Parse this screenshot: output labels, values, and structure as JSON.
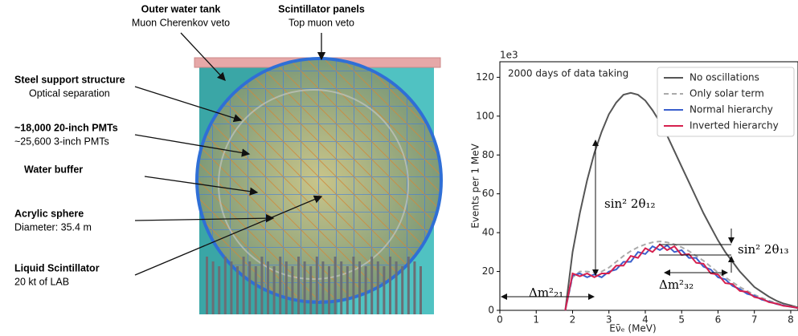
{
  "detector": {
    "labels": [
      {
        "title": "Outer water tank",
        "subtitle": "Muon Cherenkov veto"
      },
      {
        "title": "Scintillator panels",
        "subtitle": "Top muon veto"
      },
      {
        "title": "Steel support structure",
        "subtitle": "Optical separation"
      },
      {
        "title": "~18,000 20-inch PMTs",
        "subtitle": "~25,600 3-inch PMTs"
      },
      {
        "title": "Water buffer"
      },
      {
        "title": "Acrylic sphere",
        "subtitle": "Diameter: 35.4 m"
      },
      {
        "title": "Liquid Scintillator",
        "subtitle": "20 kt of LAB"
      }
    ]
  },
  "chart_data": {
    "type": "line",
    "x_label": "Eν̄ₑ (MeV)",
    "y_label": "Events per 1 MeV",
    "y_offset_label": "1e3",
    "annotations": [
      "2000 days of data taking",
      "sin² 2θ₁₂",
      "sin² 2θ₁₃",
      "Δm²₂₁",
      "Δm²₃₂"
    ],
    "x": [
      1.8,
      2.0,
      2.2,
      2.4,
      2.6,
      2.8,
      3.0,
      3.2,
      3.4,
      3.6,
      3.8,
      4.0,
      4.2,
      4.4,
      4.6,
      4.8,
      5.0,
      5.2,
      5.4,
      5.6,
      5.8,
      6.0,
      6.2,
      6.4,
      6.6,
      6.8,
      7.0,
      7.2,
      7.4,
      7.6,
      7.8,
      8.0,
      8.2
    ],
    "series": [
      {
        "name": "No oscillations",
        "color": "#555555",
        "line_style": "solid",
        "values": [
          0,
          30,
          50,
          67,
          81,
          92,
          101,
          107,
          111,
          112,
          111,
          108,
          103,
          97,
          90,
          82,
          74,
          66,
          58,
          50,
          43,
          36,
          30,
          25,
          20,
          16,
          12,
          9.5,
          7,
          5,
          3.5,
          2.5,
          1.5
        ]
      },
      {
        "name": "Only solar term",
        "color": "#aaaaaa",
        "line_style": "dashed",
        "values": [
          0,
          17,
          20,
          20,
          19.5,
          20,
          22,
          25,
          28,
          30.5,
          32.5,
          34,
          35,
          35.5,
          35,
          34,
          32.5,
          30.5,
          28,
          25.5,
          22.5,
          19.5,
          17,
          14.5,
          12,
          10,
          8,
          6.5,
          5,
          3.8,
          2.8,
          2,
          1.3
        ]
      },
      {
        "name": "Normal hierarchy",
        "color": "#3a5fcd",
        "line_style": "solid",
        "values": [
          0,
          18,
          19,
          17,
          18.5,
          17,
          20,
          21,
          25,
          25,
          30,
          29,
          33,
          31,
          33.5,
          30,
          31,
          27,
          27,
          22.5,
          21,
          17,
          16,
          12.5,
          11,
          8.5,
          7.5,
          5.5,
          4.6,
          3.3,
          2.5,
          1.8,
          1.2
        ]
      },
      {
        "name": "Inverted hierarchy",
        "color": "#d6204e",
        "line_style": "solid",
        "values": [
          0,
          19,
          17.5,
          19,
          17,
          19,
          19,
          23,
          23,
          28,
          27,
          32,
          30,
          34,
          31,
          33,
          28.5,
          29,
          24.5,
          24,
          19,
          18.5,
          14,
          13.5,
          10,
          9.5,
          6.8,
          6,
          4.2,
          3.5,
          2.3,
          1.9,
          1.2
        ]
      }
    ],
    "xlim": [
      0,
      8.2
    ],
    "ylim": [
      0,
      128
    ],
    "xticks": [
      0,
      1,
      2,
      3,
      4,
      5,
      6,
      7,
      8
    ],
    "yticks": [
      0,
      20,
      40,
      60,
      80,
      100,
      120
    ],
    "legend": "upper right"
  }
}
